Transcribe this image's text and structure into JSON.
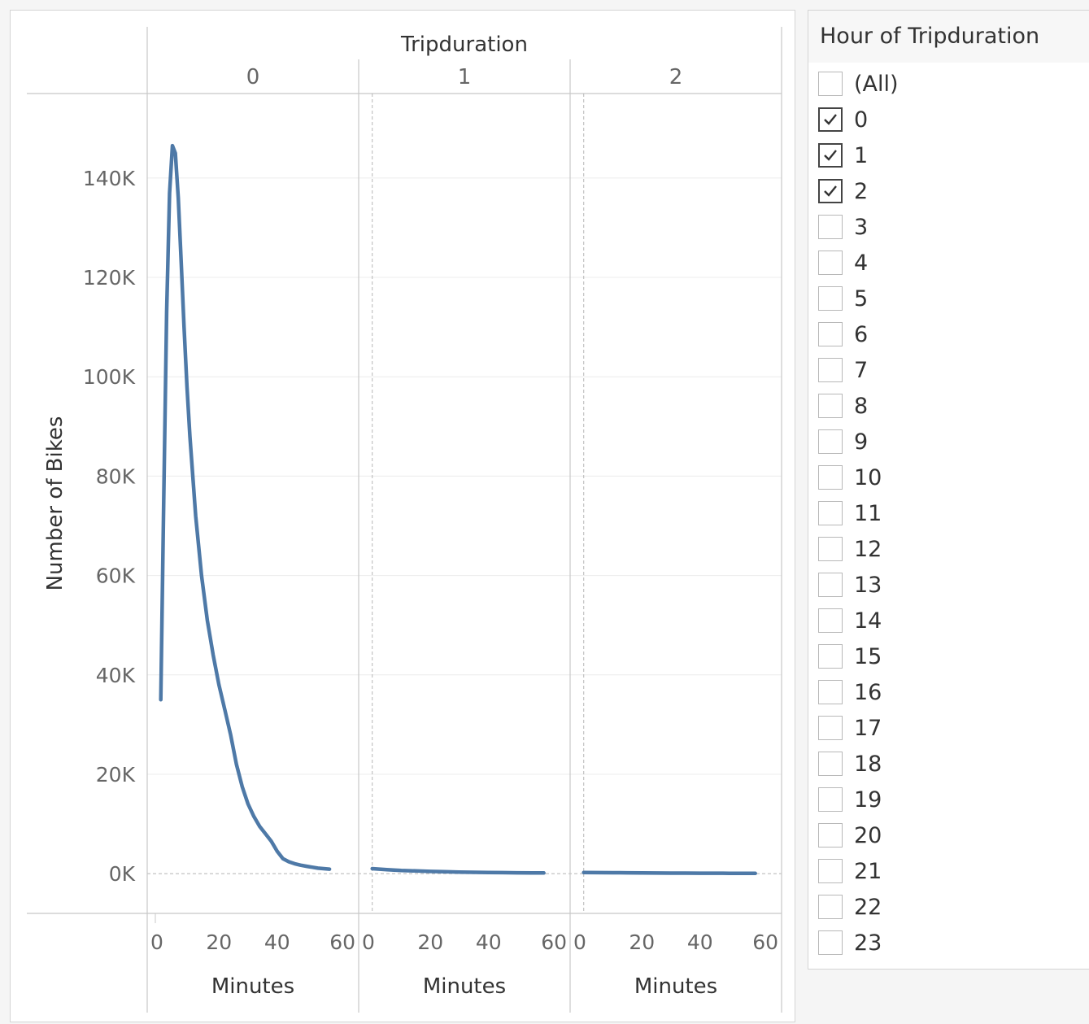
{
  "filter": {
    "title": "Hour of Tripduration",
    "items": [
      {
        "label": "(All)",
        "checked": false
      },
      {
        "label": "0",
        "checked": true
      },
      {
        "label": "1",
        "checked": true
      },
      {
        "label": "2",
        "checked": true
      },
      {
        "label": "3",
        "checked": false
      },
      {
        "label": "4",
        "checked": false
      },
      {
        "label": "5",
        "checked": false
      },
      {
        "label": "6",
        "checked": false
      },
      {
        "label": "7",
        "checked": false
      },
      {
        "label": "8",
        "checked": false
      },
      {
        "label": "9",
        "checked": false
      },
      {
        "label": "10",
        "checked": false
      },
      {
        "label": "11",
        "checked": false
      },
      {
        "label": "12",
        "checked": false
      },
      {
        "label": "13",
        "checked": false
      },
      {
        "label": "14",
        "checked": false
      },
      {
        "label": "15",
        "checked": false
      },
      {
        "label": "16",
        "checked": false
      },
      {
        "label": "17",
        "checked": false
      },
      {
        "label": "18",
        "checked": false
      },
      {
        "label": "19",
        "checked": false
      },
      {
        "label": "20",
        "checked": false
      },
      {
        "label": "21",
        "checked": false
      },
      {
        "label": "22",
        "checked": false
      },
      {
        "label": "23",
        "checked": false
      }
    ]
  },
  "chart_data": {
    "type": "line",
    "column_header": "Tripduration",
    "ylabel": "Number of Bikes",
    "xlabel": "Minutes",
    "ylim": [
      -8000,
      157000
    ],
    "yticks": [
      0,
      20000,
      40000,
      60000,
      80000,
      100000,
      120000,
      140000
    ],
    "ytick_labels": [
      "0K",
      "20K",
      "40K",
      "60K",
      "80K",
      "100K",
      "120K",
      "140K"
    ],
    "xlim": [
      -3,
      63
    ],
    "xticks": [
      0,
      20,
      40,
      60
    ],
    "xtick_labels": [
      "0",
      "20",
      "40",
      "60"
    ],
    "grid": true,
    "line_color": "#4e79a7",
    "panels": [
      {
        "label": "0",
        "x": [
          0,
          1,
          2,
          3,
          4,
          5,
          6,
          7,
          8,
          9,
          10,
          12,
          14,
          16,
          18,
          20,
          22,
          24,
          26,
          28,
          30,
          32,
          34,
          36,
          38,
          40,
          42,
          44,
          46,
          48,
          50,
          52,
          54,
          56,
          58
        ],
        "y": [
          35000,
          75000,
          113000,
          137000,
          146500,
          145000,
          136000,
          123000,
          110000,
          98000,
          88000,
          72000,
          60000,
          51000,
          44000,
          38000,
          33000,
          28000,
          22000,
          17500,
          14000,
          11500,
          9500,
          8000,
          6500,
          4500,
          3000,
          2400,
          2000,
          1700,
          1500,
          1300,
          1100,
          1000,
          900
        ]
      },
      {
        "label": "1",
        "x": [
          0,
          5,
          10,
          15,
          20,
          25,
          30,
          35,
          40,
          45,
          50,
          55,
          59
        ],
        "y": [
          1000,
          800,
          650,
          550,
          450,
          380,
          320,
          270,
          230,
          200,
          170,
          150,
          130
        ]
      },
      {
        "label": "2",
        "x": [
          0,
          5,
          10,
          15,
          20,
          25,
          30,
          35,
          40,
          45,
          50,
          55,
          59
        ],
        "y": [
          230,
          200,
          180,
          160,
          140,
          125,
          110,
          100,
          90,
          80,
          70,
          65,
          60
        ]
      }
    ]
  }
}
